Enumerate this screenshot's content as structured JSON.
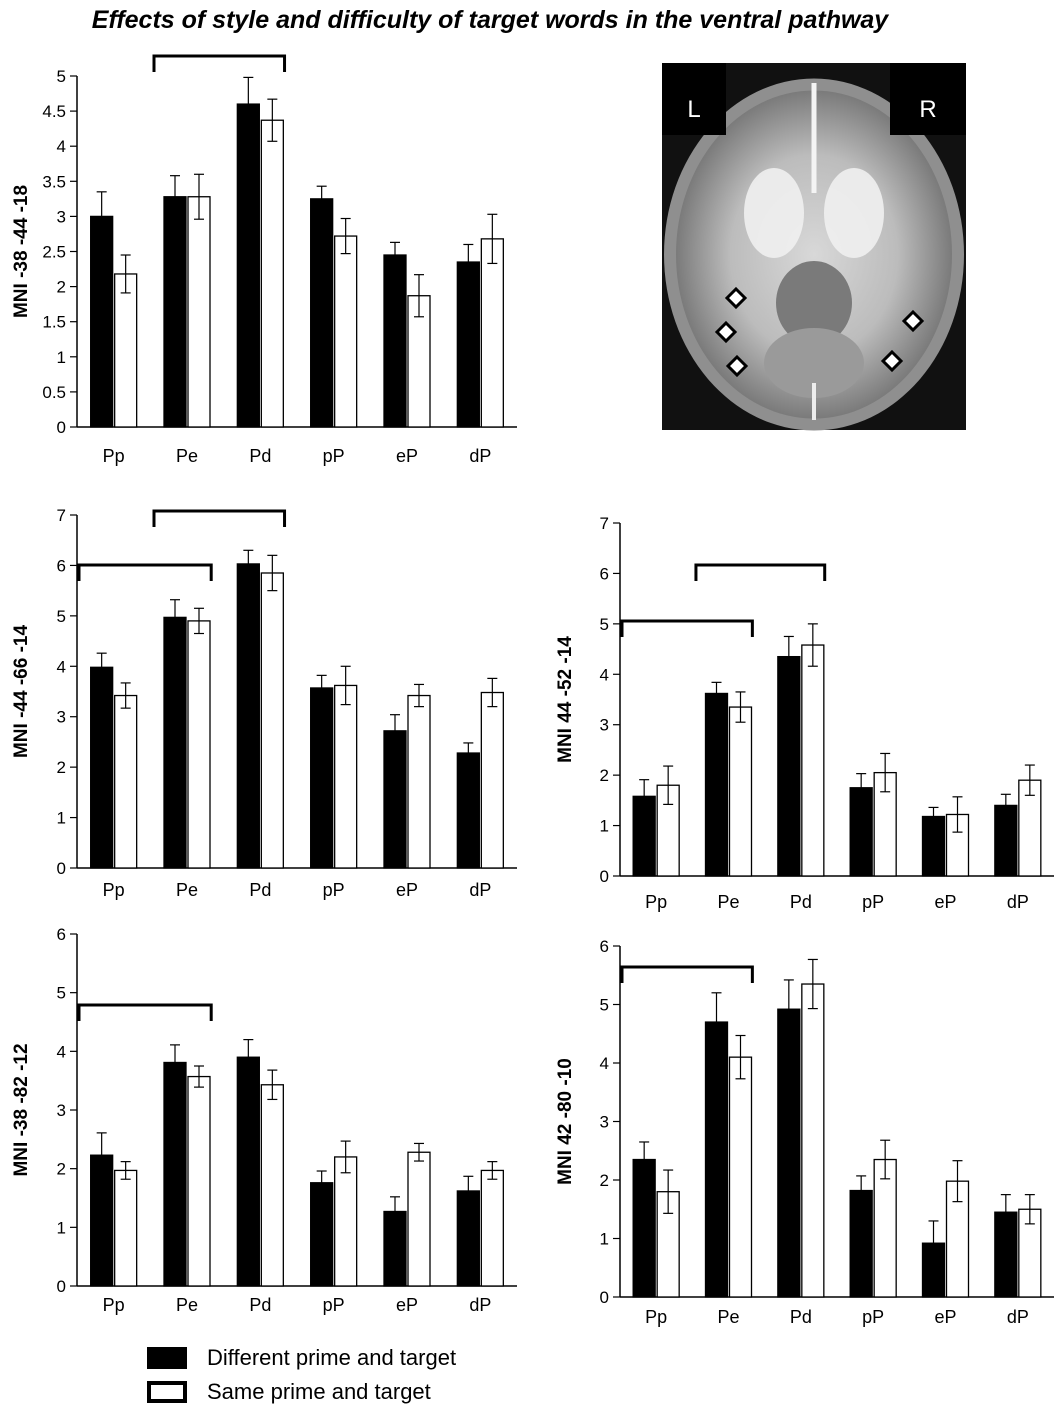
{
  "title": "Effects of style and difficulty of target words in the ventral pathway",
  "colors": {
    "different": "#000000",
    "same": "#ffffff",
    "edge": "#000000"
  },
  "legend": [
    {
      "label": "Different prime and target",
      "fill": "#000000"
    },
    {
      "label": "Same prime and target",
      "fill": "#ffffff"
    }
  ],
  "brain_image": {
    "labels": {
      "left": "L",
      "right": "R"
    },
    "markers": [
      "diamond",
      "diamond",
      "diamond",
      "diamond",
      "diamond"
    ]
  },
  "chart_data": [
    {
      "type": "bar",
      "ylabel": "MNI -38 -44 -18",
      "categories": [
        "Pp",
        "Pe",
        "Pd",
        "pP",
        "eP",
        "dP"
      ],
      "ylim": [
        0,
        5
      ],
      "yticks": [
        "0",
        "0.5",
        "1",
        "1.5",
        "2",
        "2.5",
        "3",
        "3.5",
        "4",
        "4.5",
        "5"
      ],
      "series": [
        {
          "name": "Different prime and target",
          "values": [
            3.0,
            3.28,
            4.6,
            3.25,
            2.45,
            2.35
          ],
          "errors": [
            0.35,
            0.3,
            0.38,
            0.18,
            0.18,
            0.25
          ]
        },
        {
          "name": "Same prime and target",
          "values": [
            2.18,
            3.28,
            4.37,
            2.72,
            1.87,
            2.68
          ],
          "errors": [
            0.27,
            0.32,
            0.3,
            0.25,
            0.3,
            0.35
          ]
        }
      ],
      "brackets": [
        [
          1,
          2
        ]
      ]
    },
    {
      "type": "bar",
      "ylabel": "MNI -44 -66 -14",
      "categories": [
        "Pp",
        "Pe",
        "Pd",
        "pP",
        "eP",
        "dP"
      ],
      "ylim": [
        0,
        7
      ],
      "yticks": [
        "0",
        "1",
        "2",
        "3",
        "4",
        "5",
        "6",
        "7"
      ],
      "series": [
        {
          "name": "Different prime and target",
          "values": [
            3.98,
            4.97,
            6.03,
            3.57,
            2.72,
            2.28
          ],
          "errors": [
            0.28,
            0.35,
            0.27,
            0.25,
            0.32,
            0.2
          ]
        },
        {
          "name": "Same prime and target",
          "values": [
            3.42,
            4.9,
            5.85,
            3.62,
            3.42,
            3.48
          ],
          "errors": [
            0.25,
            0.25,
            0.35,
            0.38,
            0.22,
            0.28
          ]
        }
      ],
      "brackets": [
        [
          0,
          1
        ],
        [
          1,
          2
        ]
      ]
    },
    {
      "type": "bar",
      "ylabel": "MNI 44 -52 -14",
      "categories": [
        "Pp",
        "Pe",
        "Pd",
        "pP",
        "eP",
        "dP"
      ],
      "ylim": [
        0,
        7
      ],
      "yticks": [
        "0",
        "1",
        "2",
        "3",
        "4",
        "5",
        "6",
        "7"
      ],
      "series": [
        {
          "name": "Different prime and target",
          "values": [
            1.58,
            3.62,
            4.35,
            1.75,
            1.18,
            1.4
          ],
          "errors": [
            0.33,
            0.22,
            0.4,
            0.28,
            0.18,
            0.22
          ]
        },
        {
          "name": "Same prime and target",
          "values": [
            1.8,
            3.35,
            4.58,
            2.05,
            1.22,
            1.9
          ],
          "errors": [
            0.38,
            0.3,
            0.42,
            0.38,
            0.35,
            0.3
          ]
        }
      ],
      "brackets": [
        [
          0,
          1
        ],
        [
          1,
          2
        ]
      ]
    },
    {
      "type": "bar",
      "ylabel": "MNI -38 -82 -12",
      "categories": [
        "Pp",
        "Pe",
        "Pd",
        "pP",
        "eP",
        "dP"
      ],
      "ylim": [
        0,
        6
      ],
      "yticks": [
        "0",
        "1",
        "2",
        "3",
        "4",
        "5",
        "6"
      ],
      "series": [
        {
          "name": "Different prime and target",
          "values": [
            2.23,
            3.81,
            3.9,
            1.76,
            1.27,
            1.62
          ],
          "errors": [
            0.38,
            0.3,
            0.3,
            0.2,
            0.25,
            0.25
          ]
        },
        {
          "name": "Same prime and target",
          "values": [
            1.97,
            3.57,
            3.43,
            2.2,
            2.28,
            1.97
          ],
          "errors": [
            0.15,
            0.18,
            0.25,
            0.27,
            0.15,
            0.15
          ]
        }
      ],
      "brackets": [
        [
          0,
          1
        ]
      ]
    },
    {
      "type": "bar",
      "ylabel": "MNI 42 -80 -10",
      "categories": [
        "Pp",
        "Pe",
        "Pd",
        "pP",
        "eP",
        "dP"
      ],
      "ylim": [
        0,
        6
      ],
      "yticks": [
        "0",
        "1",
        "2",
        "3",
        "4",
        "5",
        "6"
      ],
      "series": [
        {
          "name": "Different prime and target",
          "values": [
            2.35,
            4.7,
            4.92,
            1.82,
            0.92,
            1.45
          ],
          "errors": [
            0.3,
            0.5,
            0.5,
            0.25,
            0.38,
            0.3
          ]
        },
        {
          "name": "Same prime and target",
          "values": [
            1.8,
            4.1,
            5.35,
            2.35,
            1.98,
            1.5
          ],
          "errors": [
            0.37,
            0.37,
            0.42,
            0.33,
            0.35,
            0.25
          ]
        }
      ],
      "brackets": [
        [
          0,
          1
        ]
      ]
    }
  ]
}
